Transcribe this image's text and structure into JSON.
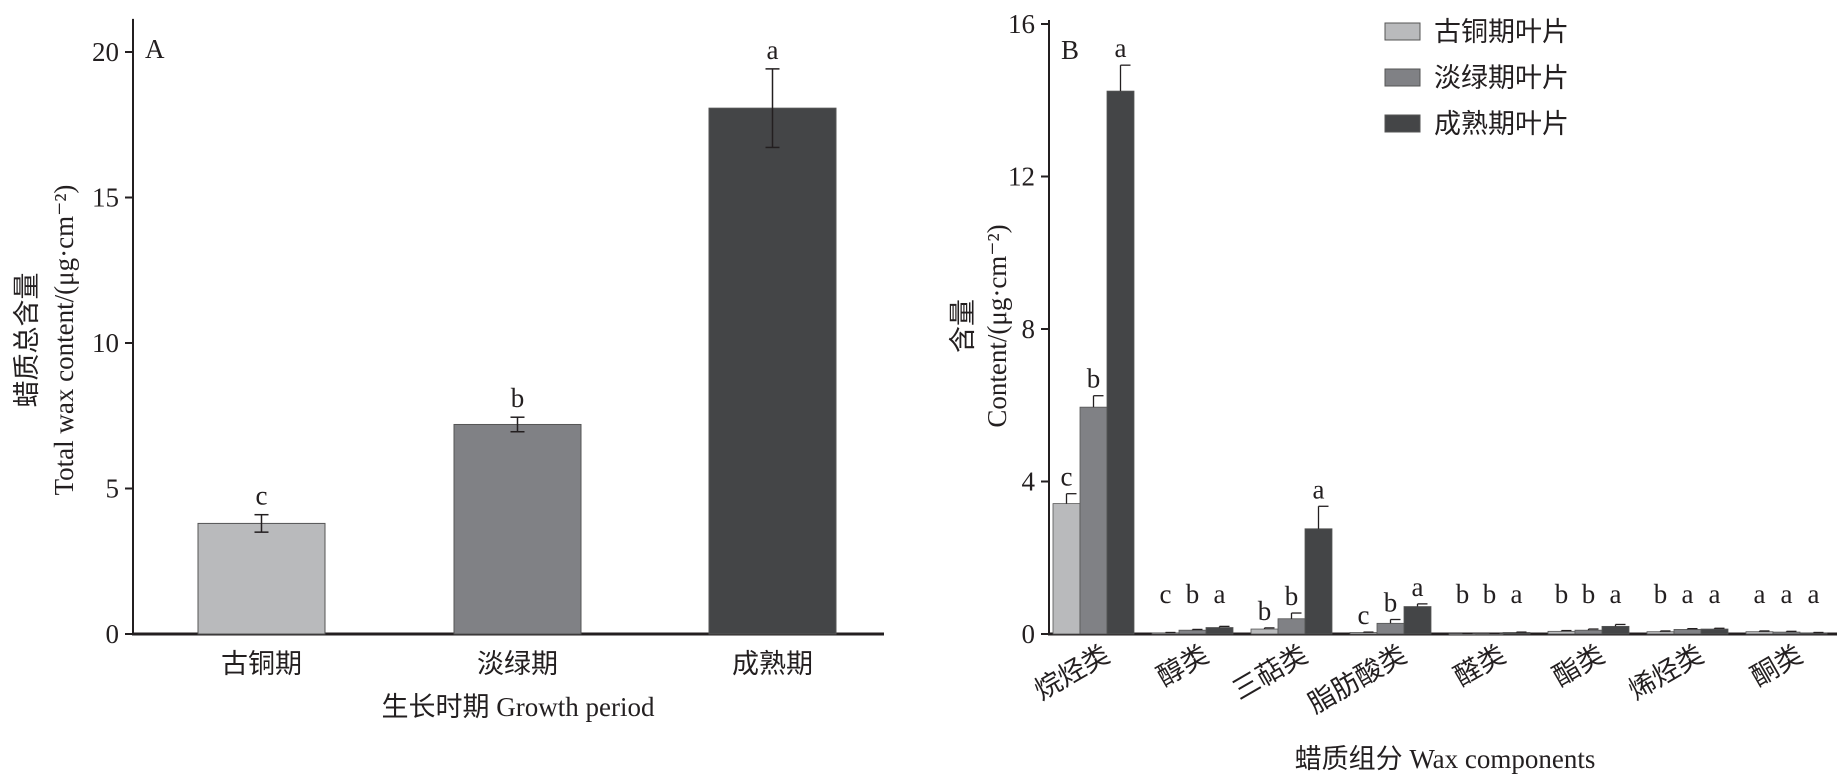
{
  "colors": {
    "bronze": "#b9babc",
    "lightgreen": "#808185",
    "mature": "#444547",
    "axis": "#231f20"
  },
  "chart_data": [
    {
      "type": "bar",
      "panel_label": "A",
      "categories": [
        "古铜期",
        "淡绿期",
        "成熟期"
      ],
      "values": [
        3.8,
        7.2,
        18.07
      ],
      "errors": [
        0.3,
        0.25,
        1.35
      ],
      "letters": [
        "c",
        "b",
        "a"
      ],
      "xlabel": "生长时期  Growth period",
      "ylabel_cn": "蜡质总含量",
      "ylabel_en": "Total wax content/(μg·cm⁻²)",
      "ylim": [
        0,
        21
      ],
      "yticks": [
        0,
        5,
        10,
        15,
        20
      ],
      "grid": false
    },
    {
      "type": "bar",
      "panel_label": "B",
      "categories": [
        "烷烃类",
        "醇类",
        "三萜类",
        "脂肪酸类",
        "醛类",
        "酯类",
        "烯烃类",
        "酮类"
      ],
      "series": [
        {
          "name": "古铜期叶片",
          "values": [
            3.42,
            0.03,
            0.13,
            0.04,
            0.01,
            0.07,
            0.06,
            0.06
          ],
          "errors": [
            0.26,
            0.01,
            0.03,
            0.01,
            0.005,
            0.02,
            0.02,
            0.02
          ],
          "letters": [
            "c",
            "c",
            "b",
            "c",
            "b",
            "b",
            "b",
            "a"
          ]
        },
        {
          "name": "淡绿期叶片",
          "values": [
            5.95,
            0.1,
            0.4,
            0.28,
            0.01,
            0.1,
            0.12,
            0.05
          ],
          "errors": [
            0.3,
            0.02,
            0.15,
            0.1,
            0.005,
            0.03,
            0.02,
            0.02
          ],
          "letters": [
            "b",
            "b",
            "b",
            "b",
            "b",
            "b",
            "a",
            "a"
          ]
        },
        {
          "name": "成熟期叶片",
          "values": [
            14.24,
            0.17,
            2.76,
            0.72,
            0.04,
            0.2,
            0.13,
            0.03
          ],
          "errors": [
            0.68,
            0.03,
            0.59,
            0.07,
            0.01,
            0.05,
            0.02,
            0.01
          ],
          "letters": [
            "a",
            "a",
            "a",
            "a",
            "a",
            "a",
            "a",
            "a"
          ]
        }
      ],
      "xlabel": "蜡质组分  Wax components",
      "ylabel_cn": "含量",
      "ylabel_en": "Content/(μg·cm⁻²)",
      "ylim": [
        0,
        16
      ],
      "yticks": [
        0,
        4,
        8,
        12,
        16
      ],
      "legend_position": "top-right",
      "grid": false
    }
  ]
}
